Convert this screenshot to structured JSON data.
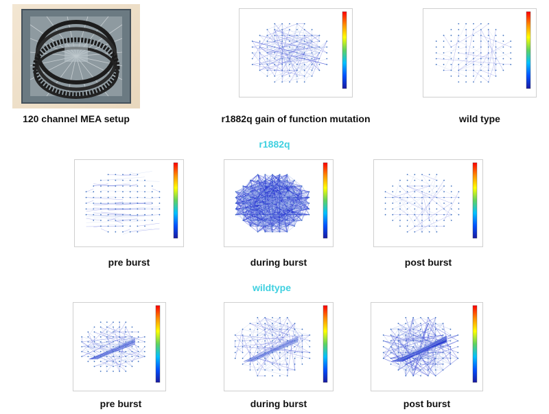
{
  "captions": {
    "mea_setup": "120 channel MEA setup",
    "gain_mutation": "r1882q gain of function mutation",
    "wild_type": "wild type",
    "r1_pre": "pre burst",
    "r1_during": "during burst",
    "r1_post": "post burst",
    "wt_pre": "pre burst",
    "wt_during": "during burst",
    "wt_post": "post burst"
  },
  "sections": {
    "r1882q": "r1882q",
    "wildtype": "wildtype"
  },
  "colors": {
    "section_title": "#3fd0e0",
    "edge_dense": "#1f2fd0",
    "edge_light": "#9fb3e8",
    "node": "#3c6fbf",
    "colorbar": [
      "#ff0000",
      "#ff8c00",
      "#ffff00",
      "#5fd35f",
      "#00c0ff",
      "#0050ff",
      "#1a1aa0"
    ]
  },
  "network_panels": [
    {
      "id": "gain",
      "density": "medium",
      "pattern": "central"
    },
    {
      "id": "wt",
      "density": "sparse",
      "pattern": "central"
    },
    {
      "id": "r1pre",
      "density": "light",
      "pattern": "horizontal"
    },
    {
      "id": "r1during",
      "density": "very dense",
      "pattern": "central"
    },
    {
      "id": "r1post",
      "density": "sparse",
      "pattern": "central"
    },
    {
      "id": "wtpre",
      "density": "medium",
      "pattern": "diagonal"
    },
    {
      "id": "wtduring",
      "density": "medium",
      "pattern": "diagonal"
    },
    {
      "id": "wtpost",
      "density": "dense",
      "pattern": "diagonal"
    }
  ]
}
